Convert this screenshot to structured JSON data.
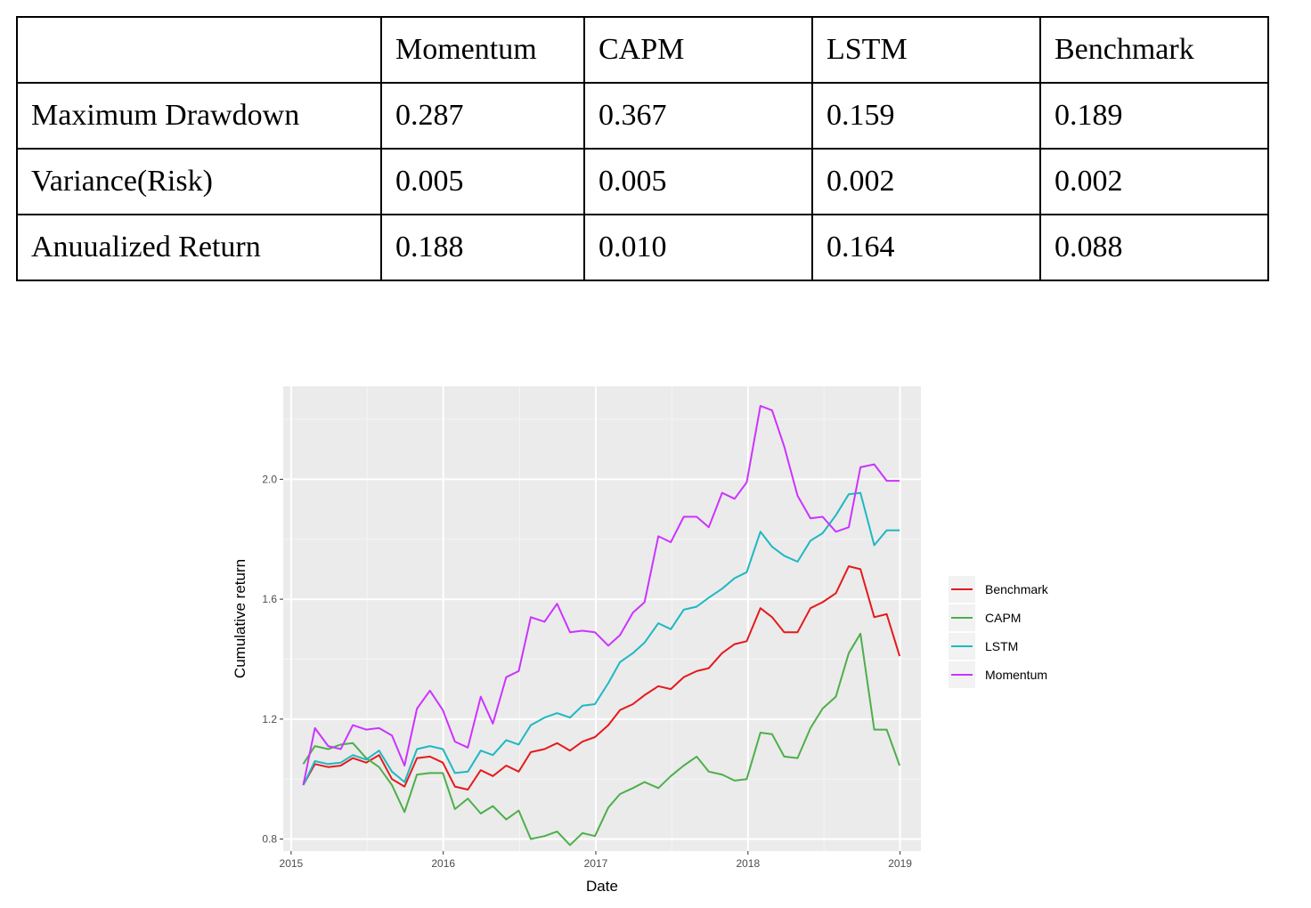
{
  "table": {
    "header": [
      "",
      "Momentum",
      "CAPM",
      "LSTM",
      "Benchmark"
    ],
    "rows": [
      [
        "Maximum Drawdown",
        "0.287",
        "0.367",
        "0.159",
        "0.189"
      ],
      [
        "Variance(Risk)",
        "0.005",
        "0.005",
        "0.002",
        "0.002"
      ],
      [
        "Anuualized Return",
        "0.188",
        "0.010",
        "0.164",
        "0.088"
      ]
    ]
  },
  "chart_data": {
    "type": "line",
    "xlabel": "Date",
    "ylabel": "Cumulative return",
    "xlim": [
      "2014-12-13",
      "2019-02-20"
    ],
    "ylim": [
      0.76,
      2.31
    ],
    "x_ticks": [
      "2015",
      "2016",
      "2017",
      "2018",
      "2019"
    ],
    "y_ticks": [
      "0.8",
      "1.2",
      "1.6",
      "2.0"
    ],
    "grid": true,
    "legend_position": "right",
    "x": [
      "2015-01-30",
      "2015-02-27",
      "2015-03-31",
      "2015-04-30",
      "2015-05-29",
      "2015-06-30",
      "2015-07-31",
      "2015-08-31",
      "2015-09-30",
      "2015-10-30",
      "2015-11-30",
      "2015-12-31",
      "2016-01-29",
      "2016-02-29",
      "2016-03-31",
      "2016-04-29",
      "2016-05-31",
      "2016-06-30",
      "2016-07-29",
      "2016-08-31",
      "2016-09-30",
      "2016-10-31",
      "2016-11-30",
      "2016-12-30",
      "2017-01-31",
      "2017-02-28",
      "2017-03-31",
      "2017-04-28",
      "2017-05-31",
      "2017-06-30",
      "2017-07-31",
      "2017-08-31",
      "2017-09-29",
      "2017-10-31",
      "2017-11-30",
      "2017-12-29",
      "2018-01-31",
      "2018-02-28",
      "2018-03-29",
      "2018-04-30",
      "2018-05-31",
      "2018-06-29",
      "2018-07-31",
      "2018-08-31",
      "2018-09-28",
      "2018-10-31",
      "2018-11-30",
      "2018-12-31"
    ],
    "series": [
      {
        "name": "Benchmark",
        "color": "#e41a1c",
        "values": [
          0.98,
          1.05,
          1.04,
          1.045,
          1.07,
          1.055,
          1.08,
          1.0,
          0.975,
          1.07,
          1.075,
          1.055,
          0.975,
          0.965,
          1.03,
          1.01,
          1.045,
          1.025,
          1.09,
          1.1,
          1.12,
          1.095,
          1.125,
          1.14,
          1.18,
          1.23,
          1.25,
          1.28,
          1.31,
          1.3,
          1.34,
          1.36,
          1.37,
          1.42,
          1.45,
          1.46,
          1.57,
          1.54,
          1.49,
          1.49,
          1.57,
          1.59,
          1.62,
          1.71,
          1.7,
          1.54,
          1.55,
          1.41
        ]
      },
      {
        "name": "CAPM",
        "color": "#4daf4a",
        "values": [
          1.05,
          1.11,
          1.1,
          1.115,
          1.12,
          1.07,
          1.04,
          0.98,
          0.89,
          1.015,
          1.02,
          1.02,
          0.9,
          0.935,
          0.885,
          0.91,
          0.865,
          0.895,
          0.8,
          0.81,
          0.825,
          0.78,
          0.82,
          0.81,
          0.905,
          0.95,
          0.97,
          0.99,
          0.97,
          1.01,
          1.045,
          1.075,
          1.025,
          1.015,
          0.995,
          1.0,
          1.155,
          1.15,
          1.075,
          1.07,
          1.17,
          1.235,
          1.275,
          1.42,
          1.485,
          1.165,
          1.165,
          1.045
        ]
      },
      {
        "name": "LSTM",
        "color": "#1eb8c2",
        "values": [
          0.98,
          1.06,
          1.05,
          1.055,
          1.08,
          1.065,
          1.095,
          1.025,
          0.99,
          1.1,
          1.11,
          1.1,
          1.02,
          1.025,
          1.095,
          1.08,
          1.13,
          1.115,
          1.18,
          1.205,
          1.22,
          1.205,
          1.245,
          1.25,
          1.32,
          1.39,
          1.42,
          1.455,
          1.52,
          1.5,
          1.565,
          1.575,
          1.605,
          1.635,
          1.67,
          1.69,
          1.825,
          1.775,
          1.745,
          1.725,
          1.795,
          1.82,
          1.88,
          1.95,
          1.955,
          1.78,
          1.83,
          1.83
        ]
      },
      {
        "name": "Momentum",
        "color": "#cc33ff",
        "values": [
          0.98,
          1.17,
          1.11,
          1.1,
          1.18,
          1.165,
          1.17,
          1.145,
          1.045,
          1.235,
          1.295,
          1.23,
          1.125,
          1.105,
          1.275,
          1.185,
          1.34,
          1.36,
          1.54,
          1.525,
          1.585,
          1.49,
          1.495,
          1.49,
          1.445,
          1.48,
          1.555,
          1.59,
          1.81,
          1.79,
          1.875,
          1.875,
          1.84,
          1.955,
          1.935,
          1.99,
          2.245,
          2.23,
          2.11,
          1.945,
          1.87,
          1.875,
          1.825,
          1.84,
          2.04,
          2.05,
          1.995,
          1.995
        ]
      }
    ]
  }
}
